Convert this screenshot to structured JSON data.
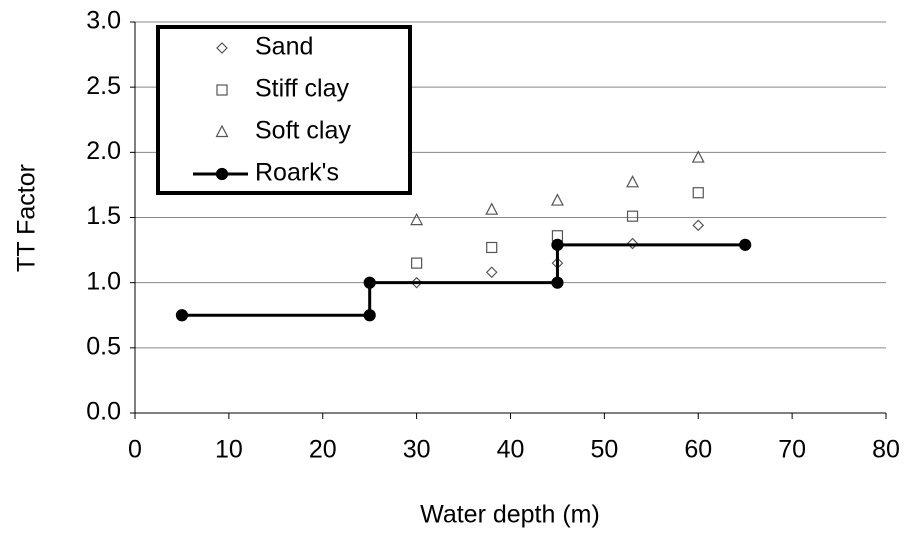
{
  "chart_data": {
    "type": "scatter",
    "xlabel": "Water depth (m)",
    "ylabel": "TT   Factor",
    "xlim": [
      0,
      80
    ],
    "xticks": [
      0,
      10,
      20,
      30,
      40,
      50,
      60,
      70,
      80
    ],
    "ylim": [
      0,
      3
    ],
    "yticks": [
      {
        "value": 0,
        "label": "0.0"
      },
      0.5,
      {
        "value": 1,
        "label": "1.0"
      },
      1.5,
      {
        "value": 2,
        "label": "2.0"
      },
      2.5,
      {
        "value": 3,
        "label": "3.0"
      }
    ],
    "grid": true,
    "legend": "upper left",
    "series": [
      {
        "name": "Sand",
        "color": "#555555",
        "marker": "diamond",
        "x": [
          30,
          38,
          45,
          53,
          60
        ],
        "values": [
          1.0,
          1.08,
          1.15,
          1.3,
          1.44
        ]
      },
      {
        "name": "Stiff clay",
        "color": "#555555",
        "marker": "square",
        "x": [
          30,
          38,
          45,
          53,
          60
        ],
        "values": [
          1.15,
          1.27,
          1.36,
          1.51,
          1.69
        ]
      },
      {
        "name": "Soft clay",
        "color": "#555555",
        "marker": "triangle",
        "x": [
          30,
          38,
          45,
          53,
          60
        ],
        "values": [
          1.48,
          1.56,
          1.63,
          1.77,
          1.96
        ]
      },
      {
        "name": "Roark's",
        "color": "#000000",
        "marker": "circle",
        "line": true,
        "x": [
          5,
          25,
          25,
          45,
          45,
          65
        ],
        "values": [
          0.75,
          0.75,
          1.0,
          1.0,
          1.29,
          1.29
        ]
      }
    ]
  }
}
